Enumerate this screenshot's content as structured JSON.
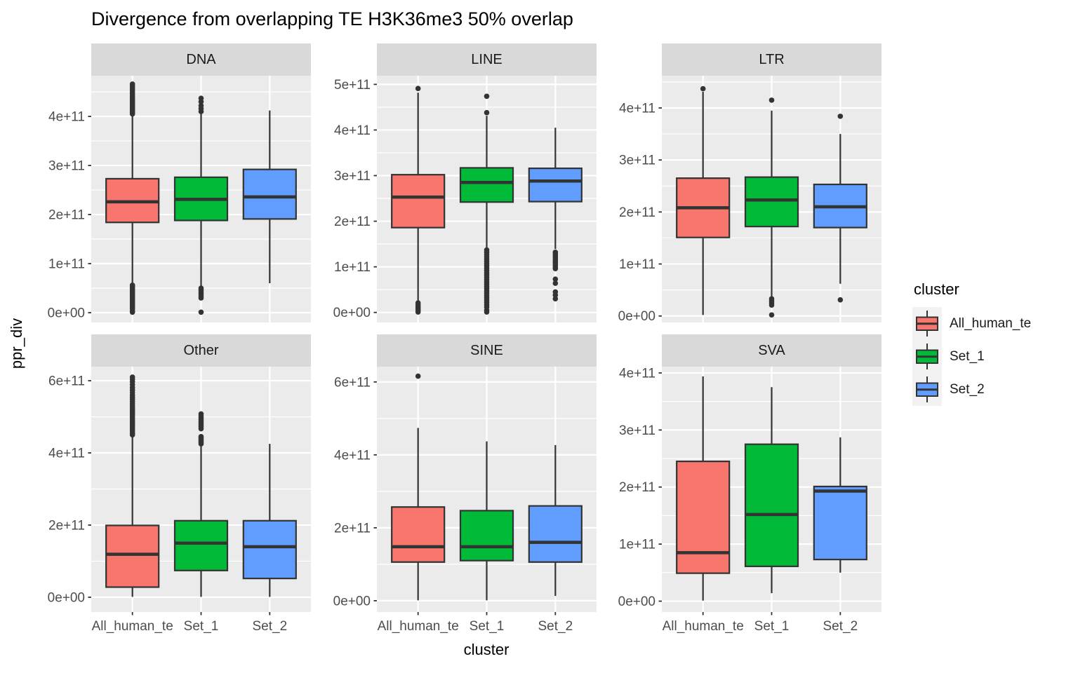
{
  "title": "Divergence from overlapping TE H3K36me3 50% overlap",
  "axes": {
    "x_title": "cluster",
    "y_title": "ppr_div"
  },
  "x_categories": [
    "All_human_te",
    "Set_1",
    "Set_2"
  ],
  "legend": {
    "title": "cluster",
    "entries": [
      {
        "label": "All_human_te",
        "color": "#F8766D"
      },
      {
        "label": "Set_1",
        "color": "#00BA38"
      },
      {
        "label": "Set_2",
        "color": "#619CFF"
      }
    ]
  },
  "palette": {
    "panel_bg": "#EBEBEB",
    "strip_bg": "#D9D9D9",
    "grid": "#FFFFFF",
    "box_stroke": "#333333",
    "tick_text": "#4D4D4D",
    "axis_text": "#000000",
    "key_bg": "#F2F2F2"
  },
  "chart_data": {
    "type": "boxplot",
    "facet_layout": "2 rows x 3 cols",
    "x_variable": "cluster",
    "y_variable": "ppr_div",
    "facets": [
      {
        "name": "DNA",
        "ylim": [
          -20000000000.0,
          483000000000.0
        ],
        "tick_step": 100000000000.0,
        "ticks": [
          {
            "value": 0,
            "label": "0e+00"
          },
          {
            "value": 100000000000.0,
            "label": "1e+11"
          },
          {
            "value": 200000000000.0,
            "label": "2e+11"
          },
          {
            "value": 300000000000.0,
            "label": "3e+11"
          },
          {
            "value": 400000000000.0,
            "label": "4e+11"
          }
        ],
        "boxes": [
          {
            "cluster": "All_human_te",
            "color": "#F8766D",
            "whisker_low": 58000000000.0,
            "q1": 184000000000.0,
            "median": 226000000000.0,
            "q3": 273000000000.0,
            "whisker_high": 404000000000.0,
            "outliers": [
              405000000000.0,
              408000000000.0,
              411000000000.0,
              414000000000.0,
              417000000000.0,
              420000000000.0,
              423000000000.0,
              426000000000.0,
              429000000000.0,
              432000000000.0,
              435000000000.0,
              438000000000.0,
              442000000000.0,
              446000000000.0,
              450000000000.0,
              454000000000.0,
              458000000000.0,
              462000000000.0,
              466000000000.0,
              56000000000.0,
              53000000000.0,
              50000000000.0,
              47000000000.0,
              44000000000.0,
              41000000000.0,
              38000000000.0,
              35000000000.0,
              32000000000.0,
              29000000000.0,
              26000000000.0,
              23000000000.0,
              20000000000.0,
              17000000000.0,
              14000000000.0,
              11000000000.0,
              8000000000.0,
              4000000000.0,
              1000000000.0
            ]
          },
          {
            "cluster": "Set_1",
            "color": "#00BA38",
            "whisker_low": 53000000000.0,
            "q1": 188000000000.0,
            "median": 231000000000.0,
            "q3": 276000000000.0,
            "whisker_high": 405000000000.0,
            "outliers": [
              410000000000.0,
              416000000000.0,
              422000000000.0,
              430000000000.0,
              437000000000.0,
              50000000000.0,
              46000000000.0,
              42000000000.0,
              38000000000.0,
              34000000000.0,
              30000000000.0,
              1000000000.0
            ]
          },
          {
            "cluster": "Set_2",
            "color": "#619CFF",
            "whisker_low": 60000000000.0,
            "q1": 191000000000.0,
            "median": 236000000000.0,
            "q3": 292000000000.0,
            "whisker_high": 412000000000.0,
            "outliers": []
          }
        ]
      },
      {
        "name": "LINE",
        "ylim": [
          -22000000000.0,
          519000000000.0
        ],
        "tick_step": 100000000000.0,
        "ticks": [
          {
            "value": 0,
            "label": "0e+00"
          },
          {
            "value": 100000000000.0,
            "label": "1e+11"
          },
          {
            "value": 200000000000.0,
            "label": "2e+11"
          },
          {
            "value": 300000000000.0,
            "label": "3e+11"
          },
          {
            "value": 400000000000.0,
            "label": "4e+11"
          },
          {
            "value": 500000000000.0,
            "label": "5e+11"
          }
        ],
        "boxes": [
          {
            "cluster": "All_human_te",
            "color": "#F8766D",
            "whisker_low": 24000000000.0,
            "q1": 186000000000.0,
            "median": 253000000000.0,
            "q3": 302000000000.0,
            "whisker_high": 482000000000.0,
            "outliers": [
              491000000000.0,
              21000000000.0,
              17000000000.0,
              13000000000.0,
              9000000000.0,
              5000000000.0,
              1000000000.0
            ]
          },
          {
            "cluster": "Set_1",
            "color": "#00BA38",
            "whisker_low": 142000000000.0,
            "q1": 242000000000.0,
            "median": 285000000000.0,
            "q3": 317000000000.0,
            "whisker_high": 431000000000.0,
            "outliers": [
              438000000000.0,
              474000000000.0,
              137000000000.0,
              132000000000.0,
              127000000000.0,
              122000000000.0,
              117000000000.0,
              112000000000.0,
              107000000000.0,
              102000000000.0,
              97000000000.0,
              92000000000.0,
              87000000000.0,
              82000000000.0,
              77000000000.0,
              72000000000.0,
              67000000000.0,
              62000000000.0,
              57000000000.0,
              52000000000.0,
              47000000000.0,
              42000000000.0,
              37000000000.0,
              32000000000.0,
              27000000000.0,
              22000000000.0,
              17000000000.0,
              12000000000.0,
              5000000000.0,
              1000000000.0
            ]
          },
          {
            "cluster": "Set_2",
            "color": "#619CFF",
            "whisker_low": 139000000000.0,
            "q1": 243000000000.0,
            "median": 288000000000.0,
            "q3": 316000000000.0,
            "whisker_high": 405000000000.0,
            "outliers": [
              132000000000.0,
              128000000000.0,
              124000000000.0,
              120000000000.0,
              116000000000.0,
              112000000000.0,
              108000000000.0,
              104000000000.0,
              100000000000.0,
              96000000000.0,
              73000000000.0,
              64000000000.0,
              45000000000.0,
              38000000000.0,
              30000000000.0
            ]
          }
        ]
      },
      {
        "name": "LTR",
        "ylim": [
          -12500000000.0,
          462000000000.0
        ],
        "tick_step": 100000000000.0,
        "ticks": [
          {
            "value": 0,
            "label": "0e+00"
          },
          {
            "value": 100000000000.0,
            "label": "1e+11"
          },
          {
            "value": 200000000000.0,
            "label": "2e+11"
          },
          {
            "value": 300000000000.0,
            "label": "3e+11"
          },
          {
            "value": 400000000000.0,
            "label": "4e+11"
          }
        ],
        "boxes": [
          {
            "cluster": "All_human_te",
            "color": "#F8766D",
            "whisker_low": 2000000000.0,
            "q1": 151000000000.0,
            "median": 208000000000.0,
            "q3": 265000000000.0,
            "whisker_high": 431000000000.0,
            "outliers": [
              437000000000.0
            ]
          },
          {
            "cluster": "Set_1",
            "color": "#00BA38",
            "whisker_low": 36000000000.0,
            "q1": 172000000000.0,
            "median": 223000000000.0,
            "q3": 267000000000.0,
            "whisker_high": 395000000000.0,
            "outliers": [
              415000000000.0,
              33000000000.0,
              29000000000.0,
              25000000000.0,
              21000000000.0,
              2000000000.0
            ]
          },
          {
            "cluster": "Set_2",
            "color": "#619CFF",
            "whisker_low": 62000000000.0,
            "q1": 170000000000.0,
            "median": 210000000000.0,
            "q3": 253000000000.0,
            "whisker_high": 350000000000.0,
            "outliers": [
              384000000000.0,
              31000000000.0
            ]
          }
        ]
      },
      {
        "name": "Other",
        "ylim": [
          -41000000000.0,
          639000000000.0
        ],
        "tick_step": 200000000000.0,
        "ticks": [
          {
            "value": 0,
            "label": "0e+00"
          },
          {
            "value": 200000000000.0,
            "label": "2e+11"
          },
          {
            "value": 400000000000.0,
            "label": "4e+11"
          },
          {
            "value": 600000000000.0,
            "label": "6e+11"
          }
        ],
        "boxes": [
          {
            "cluster": "All_human_te",
            "color": "#F8766D",
            "whisker_low": 1000000000.0,
            "q1": 28000000000.0,
            "median": 119000000000.0,
            "q3": 199000000000.0,
            "whisker_high": 444000000000.0,
            "outliers": [
              450000000000.0,
              455000000000.0,
              460000000000.0,
              465000000000.0,
              470000000000.0,
              475000000000.0,
              480000000000.0,
              485000000000.0,
              490000000000.0,
              495000000000.0,
              500000000000.0,
              505000000000.0,
              510000000000.0,
              515000000000.0,
              520000000000.0,
              525000000000.0,
              530000000000.0,
              536000000000.0,
              542000000000.0,
              548000000000.0,
              554000000000.0,
              560000000000.0,
              567000000000.0,
              574000000000.0,
              581000000000.0,
              589000000000.0,
              597000000000.0,
              604000000000.0,
              610000000000.0
            ]
          },
          {
            "cluster": "Set_1",
            "color": "#00BA38",
            "whisker_low": 1000000000.0,
            "q1": 74000000000.0,
            "median": 150000000000.0,
            "q3": 212000000000.0,
            "whisker_high": 418000000000.0,
            "outliers": [
              425000000000.0,
              429000000000.0,
              433000000000.0,
              437000000000.0,
              441000000000.0,
              445000000000.0,
              467000000000.0,
              472000000000.0,
              477000000000.0,
              482000000000.0,
              487000000000.0,
              492000000000.0,
              497000000000.0,
              502000000000.0,
              508000000000.0
            ]
          },
          {
            "cluster": "Set_2",
            "color": "#619CFF",
            "whisker_low": 1000000000.0,
            "q1": 52000000000.0,
            "median": 140000000000.0,
            "q3": 212000000000.0,
            "whisker_high": 425000000000.0,
            "outliers": []
          }
        ]
      },
      {
        "name": "SINE",
        "ylim": [
          -31000000000.0,
          642000000000.0
        ],
        "tick_step": 200000000000.0,
        "ticks": [
          {
            "value": 0,
            "label": "0e+00"
          },
          {
            "value": 200000000000.0,
            "label": "2e+11"
          },
          {
            "value": 400000000000.0,
            "label": "4e+11"
          },
          {
            "value": 600000000000.0,
            "label": "6e+11"
          }
        ],
        "boxes": [
          {
            "cluster": "All_human_te",
            "color": "#F8766D",
            "whisker_low": 1000000000.0,
            "q1": 106000000000.0,
            "median": 148000000000.0,
            "q3": 257000000000.0,
            "whisker_high": 474000000000.0,
            "outliers": [
              616000000000.0
            ]
          },
          {
            "cluster": "Set_1",
            "color": "#00BA38",
            "whisker_low": 1000000000.0,
            "q1": 110000000000.0,
            "median": 148000000000.0,
            "q3": 247000000000.0,
            "whisker_high": 437000000000.0,
            "outliers": []
          },
          {
            "cluster": "Set_2",
            "color": "#619CFF",
            "whisker_low": 13000000000.0,
            "q1": 106000000000.0,
            "median": 160000000000.0,
            "q3": 260000000000.0,
            "whisker_high": 427000000000.0,
            "outliers": []
          }
        ]
      },
      {
        "name": "SVA",
        "ylim": [
          -19000000000.0,
          411000000000.0
        ],
        "tick_step": 100000000000.0,
        "ticks": [
          {
            "value": 0,
            "label": "0e+00"
          },
          {
            "value": 100000000000.0,
            "label": "1e+11"
          },
          {
            "value": 200000000000.0,
            "label": "2e+11"
          },
          {
            "value": 300000000000.0,
            "label": "3e+11"
          },
          {
            "value": 400000000000.0,
            "label": "4e+11"
          }
        ],
        "boxes": [
          {
            "cluster": "All_human_te",
            "color": "#F8766D",
            "whisker_low": 1000000000.0,
            "q1": 49000000000.0,
            "median": 85000000000.0,
            "q3": 245000000000.0,
            "whisker_high": 394000000000.0,
            "outliers": []
          },
          {
            "cluster": "Set_1",
            "color": "#00BA38",
            "whisker_low": 14000000000.0,
            "q1": 61000000000.0,
            "median": 152000000000.0,
            "q3": 275000000000.0,
            "whisker_high": 375000000000.0,
            "outliers": []
          },
          {
            "cluster": "Set_2",
            "color": "#619CFF",
            "whisker_low": 50000000000.0,
            "q1": 73000000000.0,
            "median": 193000000000.0,
            "q3": 201000000000.0,
            "whisker_high": 287000000000.0,
            "outliers": []
          }
        ]
      }
    ]
  }
}
